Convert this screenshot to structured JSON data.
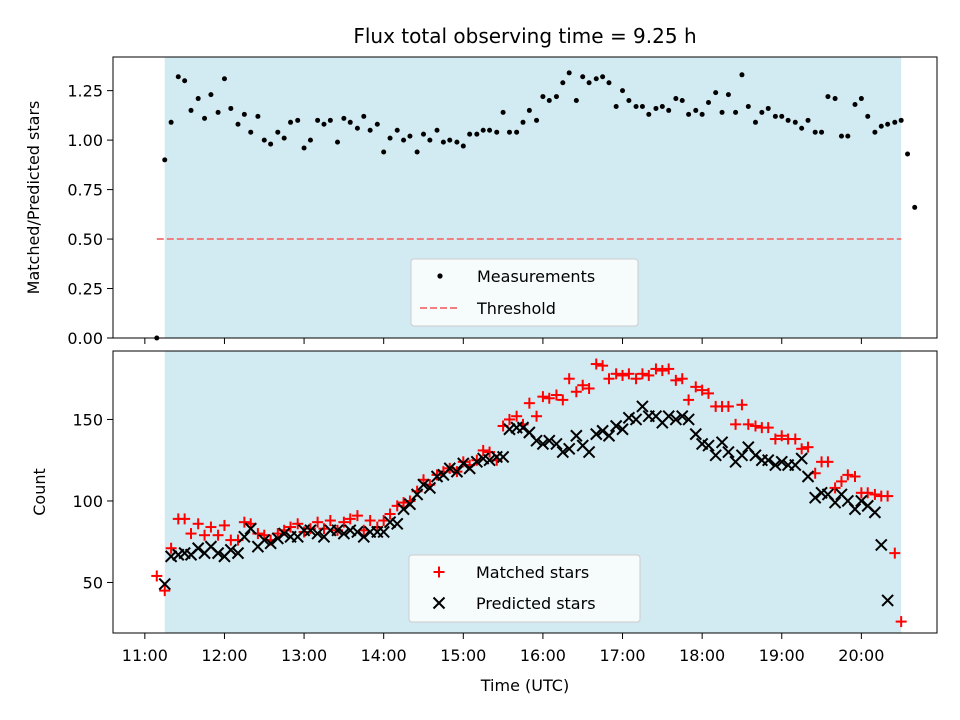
{
  "chart_data": {
    "type": "scatter",
    "title": "Flux total observing time = 9.25 h",
    "xlabel": "Time (UTC)",
    "xlim": [
      10.6,
      20.95
    ],
    "x_ticks": [
      {
        "value": 11,
        "label": "11:00"
      },
      {
        "value": 12,
        "label": "12:00"
      },
      {
        "value": 13,
        "label": "13:00"
      },
      {
        "value": 14,
        "label": "14:00"
      },
      {
        "value": 15,
        "label": "15:00"
      },
      {
        "value": 16,
        "label": "16:00"
      },
      {
        "value": 17,
        "label": "17:00"
      },
      {
        "value": 18,
        "label": "18:00"
      },
      {
        "value": 19,
        "label": "19:00"
      },
      {
        "value": 20,
        "label": "20:00"
      }
    ],
    "observing_window": [
      11.25,
      20.5
    ],
    "colors": {
      "window": "#add8e6",
      "measurements": "#000000",
      "threshold": "#f08080",
      "matched": "#ff0000",
      "predicted": "#000000"
    },
    "top": {
      "ylabel": "Matched/Predicted stars",
      "ylim": [
        0,
        1.42
      ],
      "y_ticks": [
        {
          "value": 0.0,
          "label": "0.00"
        },
        {
          "value": 0.25,
          "label": "0.25"
        },
        {
          "value": 0.5,
          "label": "0.50"
        },
        {
          "value": 0.75,
          "label": "0.75"
        },
        {
          "value": 1.0,
          "label": "1.00"
        },
        {
          "value": 1.25,
          "label": "1.25"
        }
      ],
      "legend": {
        "measurements": "Measurements",
        "threshold": "Threshold"
      },
      "threshold": {
        "value": 0.5,
        "x_range": [
          11.15,
          20.5
        ]
      },
      "measurements": [
        [
          11.15,
          0.0
        ],
        [
          11.25,
          0.9
        ],
        [
          11.33,
          1.09
        ],
        [
          11.42,
          1.32
        ],
        [
          11.5,
          1.3
        ],
        [
          11.58,
          1.15
        ],
        [
          11.67,
          1.21
        ],
        [
          11.75,
          1.11
        ],
        [
          11.83,
          1.23
        ],
        [
          11.92,
          1.14
        ],
        [
          12.0,
          1.31
        ],
        [
          12.08,
          1.16
        ],
        [
          12.17,
          1.08
        ],
        [
          12.25,
          1.13
        ],
        [
          12.33,
          1.04
        ],
        [
          12.42,
          1.12
        ],
        [
          12.5,
          1.0
        ],
        [
          12.58,
          0.98
        ],
        [
          12.67,
          1.04
        ],
        [
          12.75,
          1.01
        ],
        [
          12.83,
          1.09
        ],
        [
          12.92,
          1.1
        ],
        [
          13.0,
          0.96
        ],
        [
          13.08,
          1.0
        ],
        [
          13.17,
          1.1
        ],
        [
          13.25,
          1.08
        ],
        [
          13.33,
          1.1
        ],
        [
          13.42,
          0.99
        ],
        [
          13.5,
          1.11
        ],
        [
          13.58,
          1.09
        ],
        [
          13.67,
          1.06
        ],
        [
          13.75,
          1.12
        ],
        [
          13.83,
          1.05
        ],
        [
          13.92,
          1.08
        ],
        [
          14.0,
          0.94
        ],
        [
          14.08,
          1.01
        ],
        [
          14.17,
          1.05
        ],
        [
          14.25,
          1.0
        ],
        [
          14.33,
          1.02
        ],
        [
          14.42,
          0.94
        ],
        [
          14.5,
          1.03
        ],
        [
          14.58,
          1.0
        ],
        [
          14.67,
          1.05
        ],
        [
          14.75,
          0.99
        ],
        [
          14.83,
          1.0
        ],
        [
          14.92,
          0.99
        ],
        [
          15.0,
          0.97
        ],
        [
          15.08,
          1.03
        ],
        [
          15.17,
          1.03
        ],
        [
          15.25,
          1.05
        ],
        [
          15.33,
          1.05
        ],
        [
          15.42,
          1.04
        ],
        [
          15.5,
          1.14
        ],
        [
          15.58,
          1.04
        ],
        [
          15.67,
          1.04
        ],
        [
          15.75,
          1.09
        ],
        [
          15.83,
          1.15
        ],
        [
          15.92,
          1.1
        ],
        [
          16.0,
          1.22
        ],
        [
          16.08,
          1.2
        ],
        [
          16.17,
          1.22
        ],
        [
          16.25,
          1.29
        ],
        [
          16.33,
          1.34
        ],
        [
          16.42,
          1.2
        ],
        [
          16.5,
          1.32
        ],
        [
          16.58,
          1.29
        ],
        [
          16.67,
          1.31
        ],
        [
          16.75,
          1.32
        ],
        [
          16.83,
          1.29
        ],
        [
          16.92,
          1.17
        ],
        [
          17.0,
          1.25
        ],
        [
          17.08,
          1.2
        ],
        [
          17.17,
          1.17
        ],
        [
          17.25,
          1.17
        ],
        [
          17.33,
          1.13
        ],
        [
          17.42,
          1.16
        ],
        [
          17.5,
          1.17
        ],
        [
          17.58,
          1.15
        ],
        [
          17.67,
          1.21
        ],
        [
          17.75,
          1.2
        ],
        [
          17.83,
          1.13
        ],
        [
          17.92,
          1.15
        ],
        [
          18.0,
          1.13
        ],
        [
          18.08,
          1.19
        ],
        [
          18.17,
          1.24
        ],
        [
          18.25,
          1.14
        ],
        [
          18.33,
          1.23
        ],
        [
          18.42,
          1.14
        ],
        [
          18.5,
          1.33
        ],
        [
          18.58,
          1.17
        ],
        [
          18.67,
          1.09
        ],
        [
          18.75,
          1.14
        ],
        [
          18.83,
          1.16
        ],
        [
          18.92,
          1.12
        ],
        [
          19.0,
          1.12
        ],
        [
          19.08,
          1.1
        ],
        [
          19.17,
          1.09
        ],
        [
          19.25,
          1.06
        ],
        [
          19.33,
          1.1
        ],
        [
          19.42,
          1.04
        ],
        [
          19.5,
          1.04
        ],
        [
          19.58,
          1.22
        ],
        [
          19.67,
          1.21
        ],
        [
          19.75,
          1.02
        ],
        [
          19.83,
          1.02
        ],
        [
          19.92,
          1.18
        ],
        [
          20.0,
          1.21
        ],
        [
          20.08,
          1.12
        ],
        [
          20.17,
          1.04
        ],
        [
          20.25,
          1.07
        ],
        [
          20.33,
          1.08
        ],
        [
          20.42,
          1.09
        ],
        [
          20.5,
          1.1
        ],
        [
          20.58,
          0.93
        ],
        [
          20.67,
          0.66
        ]
      ]
    },
    "bottom": {
      "ylabel": "Count",
      "ylim": [
        19,
        192
      ],
      "y_ticks": [
        {
          "value": 50,
          "label": "50"
        },
        {
          "value": 100,
          "label": "100"
        },
        {
          "value": 150,
          "label": "150"
        }
      ],
      "legend": {
        "matched": "Matched stars",
        "predicted": "Predicted stars"
      },
      "matched": [
        [
          11.15,
          54
        ],
        [
          11.25,
          45
        ],
        [
          11.33,
          71
        ],
        [
          11.42,
          89
        ],
        [
          11.5,
          89
        ],
        [
          11.58,
          80
        ],
        [
          11.67,
          86
        ],
        [
          11.75,
          79
        ],
        [
          11.83,
          84
        ],
        [
          11.92,
          79
        ],
        [
          12.0,
          85
        ],
        [
          12.08,
          76
        ],
        [
          12.17,
          76
        ],
        [
          12.25,
          87
        ],
        [
          12.33,
          86
        ],
        [
          12.42,
          80
        ],
        [
          12.5,
          79
        ],
        [
          12.58,
          76
        ],
        [
          12.67,
          80
        ],
        [
          12.75,
          82
        ],
        [
          12.83,
          84
        ],
        [
          12.92,
          86
        ],
        [
          13.0,
          81
        ],
        [
          13.08,
          83
        ],
        [
          13.17,
          87
        ],
        [
          13.25,
          83
        ],
        [
          13.33,
          88
        ],
        [
          13.42,
          82
        ],
        [
          13.5,
          87
        ],
        [
          13.58,
          89
        ],
        [
          13.67,
          91
        ],
        [
          13.75,
          82
        ],
        [
          13.83,
          88
        ],
        [
          13.92,
          84
        ],
        [
          14.0,
          88
        ],
        [
          14.08,
          92
        ],
        [
          14.17,
          97
        ],
        [
          14.25,
          99
        ],
        [
          14.33,
          100
        ],
        [
          14.42,
          106
        ],
        [
          14.5,
          113
        ],
        [
          14.58,
          110
        ],
        [
          14.67,
          116
        ],
        [
          14.75,
          118
        ],
        [
          14.83,
          120
        ],
        [
          14.92,
          118
        ],
        [
          15.0,
          124
        ],
        [
          15.08,
          122
        ],
        [
          15.17,
          125
        ],
        [
          15.25,
          131
        ],
        [
          15.33,
          130
        ],
        [
          15.42,
          125
        ],
        [
          15.5,
          146
        ],
        [
          15.58,
          150
        ],
        [
          15.67,
          152
        ],
        [
          15.75,
          147
        ],
        [
          15.83,
          160
        ],
        [
          15.92,
          152
        ],
        [
          16.0,
          164
        ],
        [
          16.08,
          163
        ],
        [
          16.17,
          165
        ],
        [
          16.25,
          162
        ],
        [
          16.33,
          175
        ],
        [
          16.42,
          167
        ],
        [
          16.5,
          171
        ],
        [
          16.58,
          169
        ],
        [
          16.67,
          184
        ],
        [
          16.75,
          183
        ],
        [
          16.83,
          175
        ],
        [
          16.92,
          178
        ],
        [
          17.0,
          177
        ],
        [
          17.08,
          178
        ],
        [
          17.17,
          175
        ],
        [
          17.25,
          178
        ],
        [
          17.33,
          177
        ],
        [
          17.42,
          181
        ],
        [
          17.5,
          180
        ],
        [
          17.58,
          181
        ],
        [
          17.67,
          174
        ],
        [
          17.75,
          175
        ],
        [
          17.83,
          162
        ],
        [
          17.92,
          170
        ],
        [
          18.0,
          168
        ],
        [
          18.08,
          166
        ],
        [
          18.17,
          158
        ],
        [
          18.25,
          158
        ],
        [
          18.33,
          158
        ],
        [
          18.42,
          147
        ],
        [
          18.5,
          159
        ],
        [
          18.58,
          147
        ],
        [
          18.67,
          146
        ],
        [
          18.75,
          145
        ],
        [
          18.83,
          145
        ],
        [
          18.92,
          138
        ],
        [
          19.0,
          140
        ],
        [
          19.08,
          138
        ],
        [
          19.17,
          138
        ],
        [
          19.25,
          132
        ],
        [
          19.33,
          133
        ],
        [
          19.42,
          117
        ],
        [
          19.5,
          124
        ],
        [
          19.58,
          124
        ],
        [
          19.67,
          108
        ],
        [
          19.75,
          112
        ],
        [
          19.83,
          116
        ],
        [
          19.92,
          115
        ],
        [
          20.0,
          105
        ],
        [
          20.08,
          105
        ],
        [
          20.17,
          104
        ],
        [
          20.25,
          103
        ],
        [
          20.33,
          103
        ],
        [
          20.42,
          68
        ],
        [
          20.5,
          26
        ]
      ],
      "predicted": [
        [
          11.25,
          49
        ],
        [
          11.33,
          66
        ],
        [
          11.42,
          67
        ],
        [
          11.5,
          68
        ],
        [
          11.58,
          67
        ],
        [
          11.67,
          71
        ],
        [
          11.75,
          68
        ],
        [
          11.83,
          72
        ],
        [
          11.92,
          68
        ],
        [
          12.0,
          66
        ],
        [
          12.08,
          70
        ],
        [
          12.17,
          68
        ],
        [
          12.25,
          78
        ],
        [
          12.33,
          83
        ],
        [
          12.42,
          72
        ],
        [
          12.5,
          76
        ],
        [
          12.58,
          74
        ],
        [
          12.67,
          77
        ],
        [
          12.75,
          80
        ],
        [
          12.83,
          78
        ],
        [
          12.92,
          78
        ],
        [
          13.0,
          82
        ],
        [
          13.08,
          82
        ],
        [
          13.17,
          80
        ],
        [
          13.25,
          78
        ],
        [
          13.33,
          82
        ],
        [
          13.42,
          82
        ],
        [
          13.5,
          80
        ],
        [
          13.58,
          82
        ],
        [
          13.67,
          81
        ],
        [
          13.75,
          78
        ],
        [
          13.83,
          81
        ],
        [
          13.92,
          81
        ],
        [
          14.0,
          81
        ],
        [
          14.08,
          87
        ],
        [
          14.17,
          86
        ],
        [
          14.25,
          95
        ],
        [
          14.33,
          98
        ],
        [
          14.42,
          104
        ],
        [
          14.5,
          110
        ],
        [
          14.58,
          108
        ],
        [
          14.67,
          115
        ],
        [
          14.75,
          116
        ],
        [
          14.83,
          120
        ],
        [
          14.92,
          118
        ],
        [
          15.0,
          123
        ],
        [
          15.08,
          120
        ],
        [
          15.17,
          124
        ],
        [
          15.25,
          126
        ],
        [
          15.33,
          125
        ],
        [
          15.42,
          127
        ],
        [
          15.5,
          127
        ],
        [
          15.58,
          144
        ],
        [
          15.67,
          145
        ],
        [
          15.75,
          145
        ],
        [
          15.83,
          142
        ],
        [
          15.92,
          137
        ],
        [
          16.0,
          135
        ],
        [
          16.08,
          137
        ],
        [
          16.17,
          135
        ],
        [
          16.25,
          130
        ],
        [
          16.33,
          132
        ],
        [
          16.42,
          140
        ],
        [
          16.5,
          134
        ],
        [
          16.58,
          130
        ],
        [
          16.67,
          141
        ],
        [
          16.75,
          143
        ],
        [
          16.83,
          140
        ],
        [
          16.92,
          146
        ],
        [
          17.0,
          144
        ],
        [
          17.08,
          151
        ],
        [
          17.17,
          150
        ],
        [
          17.25,
          158
        ],
        [
          17.33,
          152
        ],
        [
          17.42,
          152
        ],
        [
          17.5,
          148
        ],
        [
          17.58,
          152
        ],
        [
          17.67,
          150
        ],
        [
          17.75,
          152
        ],
        [
          17.83,
          150
        ],
        [
          17.92,
          141
        ],
        [
          18.0,
          135
        ],
        [
          18.08,
          134
        ],
        [
          18.17,
          128
        ],
        [
          18.25,
          136
        ],
        [
          18.33,
          130
        ],
        [
          18.42,
          124
        ],
        [
          18.5,
          128
        ],
        [
          18.58,
          133
        ],
        [
          18.67,
          128
        ],
        [
          18.75,
          125
        ],
        [
          18.83,
          125
        ],
        [
          18.92,
          122
        ],
        [
          19.0,
          124
        ],
        [
          19.08,
          122
        ],
        [
          19.17,
          122
        ],
        [
          19.25,
          126
        ],
        [
          19.33,
          115
        ],
        [
          19.42,
          102
        ],
        [
          19.5,
          105
        ],
        [
          19.58,
          104
        ],
        [
          19.67,
          99
        ],
        [
          19.75,
          104
        ],
        [
          19.83,
          100
        ],
        [
          19.92,
          95
        ],
        [
          20.0,
          100
        ],
        [
          20.08,
          97
        ],
        [
          20.17,
          93
        ],
        [
          20.25,
          73
        ],
        [
          20.33,
          39
        ]
      ]
    }
  }
}
